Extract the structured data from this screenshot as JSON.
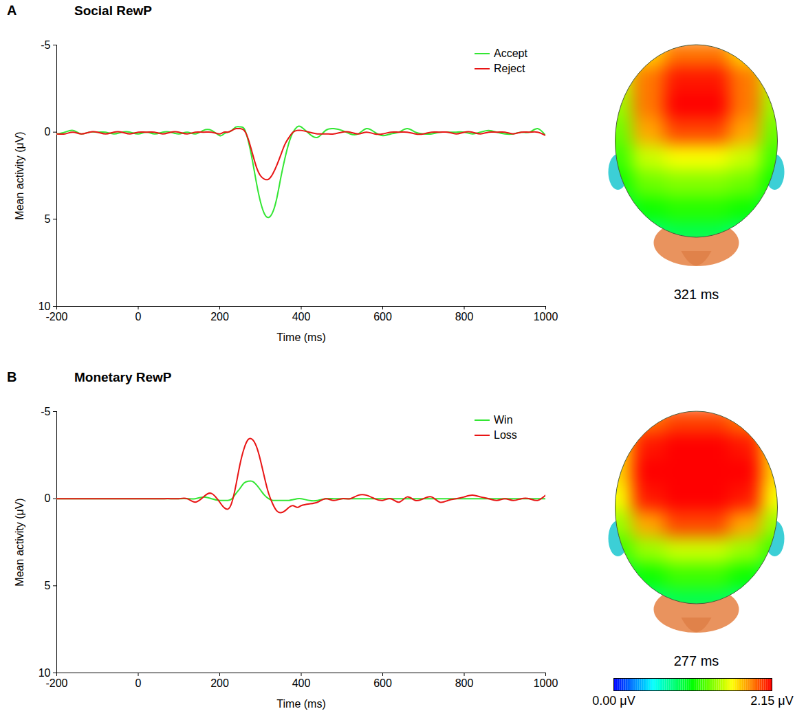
{
  "chart_data": [
    {
      "type": "line",
      "panel": "A",
      "title": "Social RewP",
      "x_label": "Time (ms)",
      "y_label": "Mean activity (μV)",
      "xlim": [
        -200,
        1000
      ],
      "xticks": [
        -200,
        0,
        200,
        400,
        600,
        800,
        1000
      ],
      "ylim": [
        -5,
        10
      ],
      "yticks": [
        -5,
        0,
        5,
        10
      ],
      "legend": "top-right",
      "x": [
        -200,
        -180,
        -160,
        -140,
        -120,
        -100,
        -80,
        -60,
        -40,
        -20,
        0,
        20,
        40,
        60,
        80,
        100,
        120,
        140,
        160,
        180,
        200,
        210,
        220,
        230,
        240,
        250,
        260,
        270,
        280,
        290,
        300,
        310,
        320,
        330,
        340,
        350,
        360,
        370,
        380,
        390,
        400,
        420,
        440,
        460,
        480,
        500,
        520,
        540,
        560,
        580,
        600,
        620,
        640,
        660,
        680,
        700,
        720,
        740,
        760,
        780,
        800,
        820,
        840,
        860,
        880,
        900,
        920,
        940,
        960,
        980,
        1000
      ],
      "series": [
        {
          "name": "Accept",
          "color": "#33e633",
          "values": [
            0.1,
            0,
            -0.1,
            0.1,
            0,
            0,
            0,
            0.1,
            0,
            0,
            0.1,
            0,
            0.1,
            0,
            0,
            0.1,
            0,
            0.1,
            -0.1,
            -0.1,
            0.2,
            0.1,
            0,
            -0.1,
            -0.3,
            -0.3,
            -0.2,
            0.5,
            1.6,
            2.9,
            4.0,
            4.7,
            4.9,
            4.6,
            3.8,
            2.6,
            1.5,
            0.6,
            0,
            -0.3,
            -0.3,
            0.1,
            0.3,
            -0.1,
            -0.2,
            -0.1,
            0.1,
            0.1,
            -0.2,
            0,
            0.2,
            0.1,
            0,
            -0.2,
            0,
            0.1,
            0.1,
            0,
            0,
            0,
            0,
            0.1,
            0,
            -0.1,
            0,
            0.1,
            0.1,
            0,
            0,
            -0.2,
            0.2
          ]
        },
        {
          "name": "Reject",
          "color": "#e81414",
          "values": [
            0.1,
            0.1,
            0,
            0.1,
            0,
            0,
            0.1,
            0,
            0,
            0.1,
            0,
            0,
            0,
            0.1,
            0,
            0,
            0.1,
            0,
            0,
            0,
            0.1,
            0,
            0,
            -0.1,
            -0.2,
            -0.2,
            -0.1,
            0.4,
            1.2,
            2.0,
            2.5,
            2.7,
            2.7,
            2.4,
            1.9,
            1.3,
            0.7,
            0.3,
            0,
            -0.1,
            -0.1,
            0,
            0.1,
            0.1,
            0.1,
            0,
            0,
            0.1,
            0,
            0.1,
            0.1,
            0,
            0,
            0,
            0.1,
            0.1,
            0,
            0,
            0,
            0.1,
            0,
            0,
            0.1,
            0,
            0,
            0,
            0.1,
            0,
            0,
            0,
            0.2
          ]
        }
      ],
      "topomap": {
        "time_label": "321 ms",
        "cells": [
          [
            1.3,
            1.7,
            1.9,
            1.9,
            1.7,
            1.3
          ],
          [
            1.5,
            1.9,
            2.1,
            2.1,
            1.9,
            1.5
          ],
          [
            1.4,
            1.9,
            2.15,
            2.15,
            1.9,
            1.4
          ],
          [
            1.3,
            1.8,
            2.0,
            2.0,
            1.8,
            1.3
          ],
          [
            1.2,
            1.5,
            1.6,
            1.6,
            1.5,
            1.2
          ],
          [
            1.1,
            1.3,
            1.35,
            1.35,
            1.3,
            1.1
          ],
          [
            0.9,
            1.1,
            1.15,
            1.15,
            1.1,
            0.9
          ],
          [
            0.7,
            0.8,
            0.9,
            0.9,
            0.8,
            0.7
          ]
        ]
      }
    },
    {
      "type": "line",
      "panel": "B",
      "title": "Monetary RewP",
      "x_label": "Time (ms)",
      "y_label": "Mean activity (μV)",
      "xlim": [
        -200,
        1000
      ],
      "xticks": [
        -200,
        0,
        200,
        400,
        600,
        800,
        1000
      ],
      "ylim": [
        -5,
        10
      ],
      "yticks": [
        -5,
        0,
        5,
        10
      ],
      "legend": "top-right",
      "x": [
        -200,
        -180,
        -160,
        -140,
        -120,
        -100,
        -80,
        -60,
        -40,
        -20,
        0,
        20,
        40,
        60,
        80,
        100,
        120,
        140,
        160,
        180,
        200,
        210,
        220,
        230,
        240,
        250,
        260,
        270,
        280,
        290,
        300,
        310,
        320,
        330,
        340,
        350,
        360,
        370,
        380,
        390,
        400,
        420,
        440,
        460,
        480,
        500,
        520,
        540,
        560,
        580,
        600,
        620,
        640,
        660,
        680,
        700,
        720,
        740,
        760,
        780,
        800,
        820,
        840,
        860,
        880,
        900,
        920,
        940,
        960,
        980,
        1000
      ],
      "series": [
        {
          "name": "Win",
          "color": "#33e633",
          "values": [
            0,
            0,
            0,
            0,
            0,
            0,
            0,
            0,
            0,
            0,
            0,
            0,
            0,
            0,
            0,
            0,
            0,
            0,
            -0.1,
            0,
            0.1,
            0.1,
            0.1,
            0,
            -0.3,
            -0.6,
            -0.9,
            -1.0,
            -1.0,
            -0.8,
            -0.5,
            -0.2,
            0,
            0.1,
            0.1,
            0.1,
            0.1,
            0.1,
            0.05,
            0,
            0,
            0.1,
            0.1,
            0,
            0,
            0,
            0,
            0,
            0,
            0,
            0,
            0,
            0,
            0,
            0,
            0,
            0,
            0,
            0,
            0,
            0,
            0,
            0,
            0,
            0,
            0,
            0,
            0,
            0,
            0,
            0
          ]
        },
        {
          "name": "Loss",
          "color": "#e81414",
          "values": [
            0,
            0,
            0,
            0,
            0,
            0,
            0,
            0,
            0,
            0,
            0,
            0,
            0,
            0,
            0,
            0,
            0,
            0.2,
            -0.1,
            -0.3,
            0.2,
            0.5,
            0.6,
            0.2,
            -0.8,
            -2.0,
            -2.9,
            -3.4,
            -3.4,
            -3.0,
            -2.2,
            -1.2,
            -0.3,
            0.3,
            0.7,
            0.8,
            0.7,
            0.5,
            0.4,
            0.5,
            0.4,
            0.3,
            0.2,
            0,
            0.1,
            0,
            0,
            -0.2,
            -0.2,
            0,
            0.1,
            0,
            0.2,
            -0.1,
            0.1,
            0,
            -0.1,
            0.2,
            0.1,
            0,
            -0.1,
            -0.2,
            -0.1,
            0,
            0.1,
            0,
            0.1,
            0,
            0,
            0.1,
            -0.2
          ]
        }
      ],
      "topomap": {
        "time_label": "277 ms",
        "cells": [
          [
            1.5,
            1.9,
            2.0,
            2.0,
            1.9,
            1.5
          ],
          [
            1.7,
            2.1,
            2.15,
            2.15,
            2.1,
            1.7
          ],
          [
            1.7,
            2.15,
            2.15,
            2.15,
            2.15,
            1.7
          ],
          [
            1.6,
            2.1,
            2.15,
            2.15,
            2.1,
            1.6
          ],
          [
            1.4,
            1.8,
            2.0,
            2.0,
            1.8,
            1.4
          ],
          [
            1.2,
            1.4,
            1.5,
            1.5,
            1.4,
            1.2
          ],
          [
            0.9,
            1.1,
            1.2,
            1.2,
            1.1,
            0.9
          ],
          [
            0.7,
            0.8,
            0.9,
            0.9,
            0.8,
            0.7
          ]
        ]
      }
    }
  ],
  "colorbar": {
    "range": [
      0,
      2.15
    ],
    "ticks": [
      {
        "value": 0,
        "label": "0.00 μV"
      },
      {
        "value": 2.15,
        "label": "2.15 μV"
      }
    ]
  }
}
